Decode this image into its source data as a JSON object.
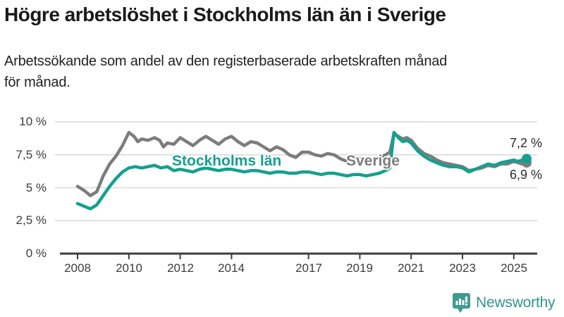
{
  "header": {
    "title": "Högre arbetslöshet i Stockholms län än i Sverige",
    "subtitle_line1": "Arbetssökande som andel av den registerbaserade arbetskraften månad",
    "subtitle_line2": "för månad."
  },
  "logo": {
    "text": "Newsworthy",
    "icon": "newsworthy-bar-chart-bubble-icon",
    "color": "#2f958a",
    "icon_color": "#3f9c90"
  },
  "colors": {
    "background": "#ffffff",
    "grid": "#d9d9d9",
    "axis": "#3d3d3d",
    "tick_text": "#3c3c3c",
    "value_label_text": "#2b2b2b"
  },
  "chart_data": {
    "type": "line",
    "title": "Högre arbetslöshet i Stockholms län än i Sverige",
    "subtitle": "Arbetssökande som andel av den registerbaserade arbetskraften månad för månad.",
    "xlabel": "",
    "ylabel": "",
    "x_unit": "year (monthly data)",
    "y_unit": "percent",
    "ylim": [
      0,
      10.5
    ],
    "xlim": [
      2007.3,
      2026
    ],
    "grid": "horizontal",
    "legend_position": "inline-labels",
    "y_tick_values": [
      10,
      7.5,
      5,
      2.5,
      0
    ],
    "y_tick_labels": [
      "10 %",
      "7,5 %",
      "5 %",
      "2,5 %",
      "0 %"
    ],
    "x_tick_values": [
      2008,
      2010,
      2012,
      2014,
      2017,
      2019,
      2021,
      2023,
      2025
    ],
    "x_tick_labels": [
      "2008",
      "2010",
      "2012",
      "2014",
      "2017",
      "2019",
      "2021",
      "2023",
      "2025"
    ],
    "series": [
      {
        "name": "Sverige",
        "color": "#7c7c7c",
        "end_label": "6,9 %",
        "end_value": 6.9,
        "points": [
          [
            2008.0,
            5.1
          ],
          [
            2008.25,
            4.8
          ],
          [
            2008.5,
            4.4
          ],
          [
            2008.75,
            4.7
          ],
          [
            2009.0,
            5.9
          ],
          [
            2009.25,
            6.8
          ],
          [
            2009.5,
            7.4
          ],
          [
            2009.75,
            8.2
          ],
          [
            2010.0,
            9.2
          ],
          [
            2010.2,
            8.9
          ],
          [
            2010.35,
            8.5
          ],
          [
            2010.5,
            8.7
          ],
          [
            2010.75,
            8.6
          ],
          [
            2011.0,
            8.8
          ],
          [
            2011.2,
            8.6
          ],
          [
            2011.35,
            8.1
          ],
          [
            2011.5,
            8.4
          ],
          [
            2011.75,
            8.3
          ],
          [
            2012.0,
            8.8
          ],
          [
            2012.25,
            8.5
          ],
          [
            2012.5,
            8.2
          ],
          [
            2012.75,
            8.6
          ],
          [
            2013.0,
            8.9
          ],
          [
            2013.25,
            8.6
          ],
          [
            2013.5,
            8.3
          ],
          [
            2013.75,
            8.7
          ],
          [
            2014.0,
            8.9
          ],
          [
            2014.25,
            8.5
          ],
          [
            2014.5,
            8.2
          ],
          [
            2014.75,
            8.5
          ],
          [
            2015.0,
            8.4
          ],
          [
            2015.25,
            8.1
          ],
          [
            2015.5,
            7.8
          ],
          [
            2015.75,
            8.1
          ],
          [
            2016.0,
            7.9
          ],
          [
            2016.25,
            7.5
          ],
          [
            2016.5,
            7.3
          ],
          [
            2016.75,
            7.7
          ],
          [
            2017.0,
            7.7
          ],
          [
            2017.25,
            7.5
          ],
          [
            2017.5,
            7.4
          ],
          [
            2017.75,
            7.6
          ],
          [
            2018.0,
            7.5
          ],
          [
            2018.25,
            7.2
          ],
          [
            2018.5,
            7.0
          ],
          [
            2018.75,
            7.2
          ],
          [
            2019.0,
            7.2
          ],
          [
            2019.25,
            7.0
          ],
          [
            2019.5,
            7.1
          ],
          [
            2019.75,
            7.3
          ],
          [
            2020.0,
            7.5
          ],
          [
            2020.17,
            7.7
          ],
          [
            2020.33,
            9.1
          ],
          [
            2020.5,
            8.9
          ],
          [
            2020.67,
            8.7
          ],
          [
            2020.83,
            8.8
          ],
          [
            2021.0,
            8.6
          ],
          [
            2021.25,
            8.0
          ],
          [
            2021.5,
            7.6
          ],
          [
            2021.75,
            7.4
          ],
          [
            2022.0,
            7.1
          ],
          [
            2022.25,
            6.9
          ],
          [
            2022.5,
            6.8
          ],
          [
            2022.75,
            6.7
          ],
          [
            2023.0,
            6.6
          ],
          [
            2023.25,
            6.3
          ],
          [
            2023.5,
            6.4
          ],
          [
            2023.75,
            6.5
          ],
          [
            2024.0,
            6.7
          ],
          [
            2024.25,
            6.6
          ],
          [
            2024.5,
            6.8
          ],
          [
            2024.75,
            6.8
          ],
          [
            2025.0,
            7.0
          ],
          [
            2025.17,
            6.9
          ],
          [
            2025.33,
            6.8
          ],
          [
            2025.5,
            6.9
          ]
        ]
      },
      {
        "name": "Stockholms län",
        "color": "#14a08e",
        "end_label": "7,2 %",
        "end_value": 7.2,
        "points": [
          [
            2008.0,
            3.8
          ],
          [
            2008.25,
            3.6
          ],
          [
            2008.5,
            3.4
          ],
          [
            2008.75,
            3.7
          ],
          [
            2009.0,
            4.4
          ],
          [
            2009.25,
            5.1
          ],
          [
            2009.5,
            5.7
          ],
          [
            2009.75,
            6.2
          ],
          [
            2010.0,
            6.5
          ],
          [
            2010.25,
            6.6
          ],
          [
            2010.5,
            6.5
          ],
          [
            2010.75,
            6.6
          ],
          [
            2011.0,
            6.7
          ],
          [
            2011.25,
            6.5
          ],
          [
            2011.5,
            6.6
          ],
          [
            2011.75,
            6.3
          ],
          [
            2012.0,
            6.4
          ],
          [
            2012.25,
            6.3
          ],
          [
            2012.5,
            6.2
          ],
          [
            2012.75,
            6.4
          ],
          [
            2013.0,
            6.5
          ],
          [
            2013.25,
            6.4
          ],
          [
            2013.5,
            6.3
          ],
          [
            2013.75,
            6.4
          ],
          [
            2014.0,
            6.4
          ],
          [
            2014.25,
            6.3
          ],
          [
            2014.5,
            6.2
          ],
          [
            2014.75,
            6.3
          ],
          [
            2015.0,
            6.3
          ],
          [
            2015.25,
            6.2
          ],
          [
            2015.5,
            6.1
          ],
          [
            2015.75,
            6.2
          ],
          [
            2016.0,
            6.2
          ],
          [
            2016.25,
            6.1
          ],
          [
            2016.5,
            6.1
          ],
          [
            2016.75,
            6.2
          ],
          [
            2017.0,
            6.2
          ],
          [
            2017.25,
            6.1
          ],
          [
            2017.5,
            6.0
          ],
          [
            2017.75,
            6.1
          ],
          [
            2018.0,
            6.1
          ],
          [
            2018.25,
            6.0
          ],
          [
            2018.5,
            5.9
          ],
          [
            2018.75,
            6.0
          ],
          [
            2019.0,
            6.0
          ],
          [
            2019.25,
            5.9
          ],
          [
            2019.5,
            6.0
          ],
          [
            2019.75,
            6.1
          ],
          [
            2020.0,
            6.3
          ],
          [
            2020.17,
            6.5
          ],
          [
            2020.33,
            9.2
          ],
          [
            2020.5,
            8.8
          ],
          [
            2020.67,
            8.5
          ],
          [
            2020.83,
            8.6
          ],
          [
            2021.0,
            8.4
          ],
          [
            2021.25,
            7.8
          ],
          [
            2021.5,
            7.4
          ],
          [
            2021.75,
            7.1
          ],
          [
            2022.0,
            6.9
          ],
          [
            2022.25,
            6.7
          ],
          [
            2022.5,
            6.6
          ],
          [
            2022.75,
            6.6
          ],
          [
            2023.0,
            6.5
          ],
          [
            2023.25,
            6.2
          ],
          [
            2023.5,
            6.4
          ],
          [
            2023.75,
            6.6
          ],
          [
            2024.0,
            6.8
          ],
          [
            2024.25,
            6.7
          ],
          [
            2024.5,
            6.9
          ],
          [
            2024.75,
            7.0
          ],
          [
            2025.0,
            7.1
          ],
          [
            2025.17,
            7.0
          ],
          [
            2025.33,
            7.1
          ],
          [
            2025.5,
            7.2
          ]
        ]
      }
    ]
  }
}
